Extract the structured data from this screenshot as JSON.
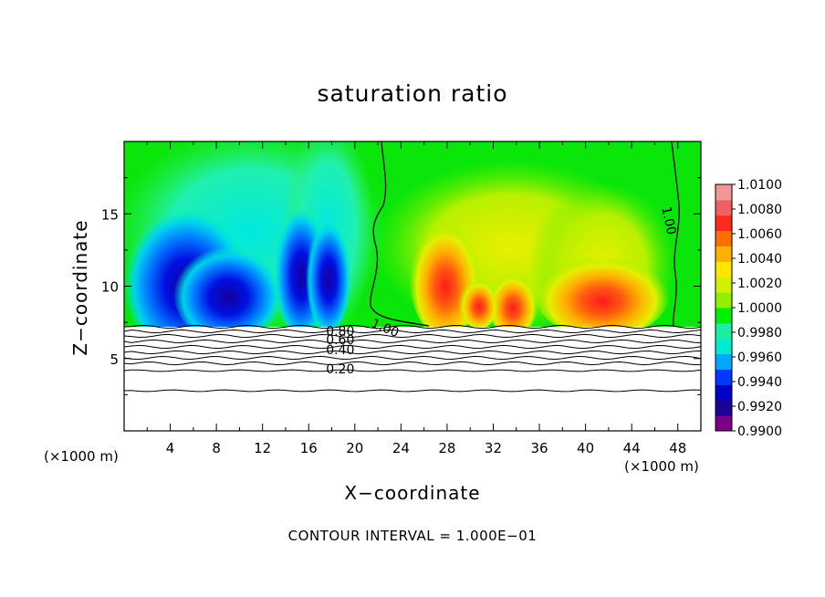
{
  "chart_data": {
    "type": "heatmap",
    "title": "saturation ratio",
    "xlabel": "X−coordinate",
    "ylabel": "Z−coordinate",
    "x_unit_left": "(×1000 m)",
    "x_unit_right": "(×1000 m)",
    "footnote": "CONTOUR INTERVAL = 1.000E−01",
    "xlim": [
      0,
      50
    ],
    "ylim": [
      0,
      20
    ],
    "x_ticks": [
      4,
      8,
      12,
      16,
      20,
      24,
      28,
      32,
      36,
      40,
      44,
      48
    ],
    "y_ticks": [
      5,
      10,
      15
    ],
    "colorbar": {
      "min": 0.99,
      "max": 1.01,
      "labels": [
        "1.0100",
        "1.0080",
        "1.0060",
        "1.0040",
        "1.0020",
        "1.0000",
        "0.9980",
        "0.9960",
        "0.9940",
        "0.9920",
        "0.9900"
      ],
      "colors": [
        "#7a0088",
        "#1e0094",
        "#0000c8",
        "#0038ff",
        "#00a6ff",
        "#00ecd0",
        "#1af0a0",
        "#00ee00",
        "#90f000",
        "#d2f000",
        "#ffe600",
        "#ffb000",
        "#ff7000",
        "#ff2a1a",
        "#f06060",
        "#f09898"
      ]
    },
    "contour_labels": [
      {
        "text": "1.00",
        "x": 21.5,
        "z": 7.5
      },
      {
        "text": "1.00",
        "x": 47.0,
        "z": 15.5
      },
      {
        "text": "0.80",
        "x": 17.5,
        "z": 6.9
      },
      {
        "text": "0.60",
        "x": 17.5,
        "z": 6.3
      },
      {
        "text": "0.40",
        "x": 17.5,
        "z": 5.6
      },
      {
        "text": "0.20",
        "x": 17.5,
        "z": 4.3
      }
    ]
  }
}
